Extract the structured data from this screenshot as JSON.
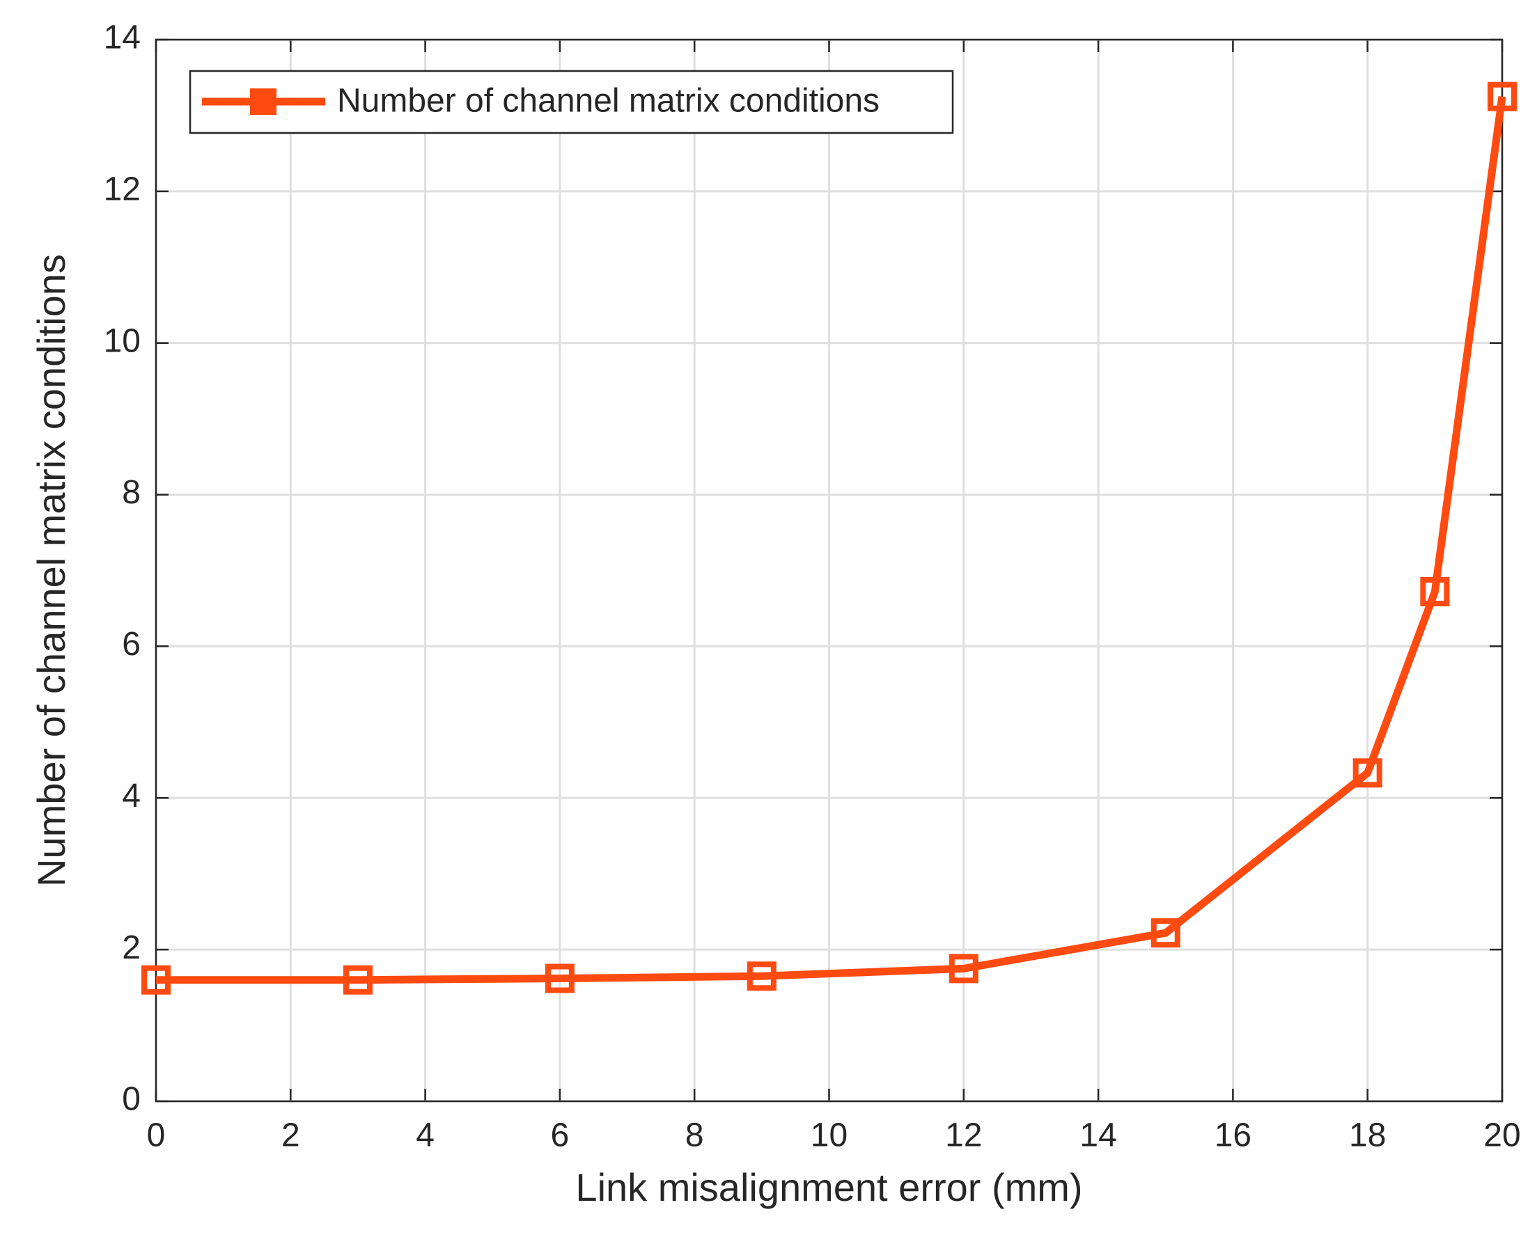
{
  "chart_data": {
    "type": "line",
    "x_label": "Link misalignment error (mm)",
    "y_label": "Number of channel matrix conditions",
    "x": [
      0,
      3,
      6,
      9,
      12,
      15,
      18,
      19,
      20
    ],
    "series": [
      {
        "name": "Number of channel matrix conditions",
        "color": "#ff4a10",
        "values": [
          1.6,
          1.6,
          1.62,
          1.65,
          1.75,
          2.22,
          4.33,
          6.72,
          13.25
        ]
      }
    ],
    "xlim": [
      0,
      20
    ],
    "xticks": [
      0,
      2,
      4,
      6,
      8,
      10,
      12,
      14,
      16,
      18,
      20
    ],
    "ylim": [
      0,
      14
    ],
    "yticks": [
      0,
      2,
      4,
      6,
      8,
      10,
      12,
      14
    ],
    "grid": true,
    "legend": "upper left"
  }
}
